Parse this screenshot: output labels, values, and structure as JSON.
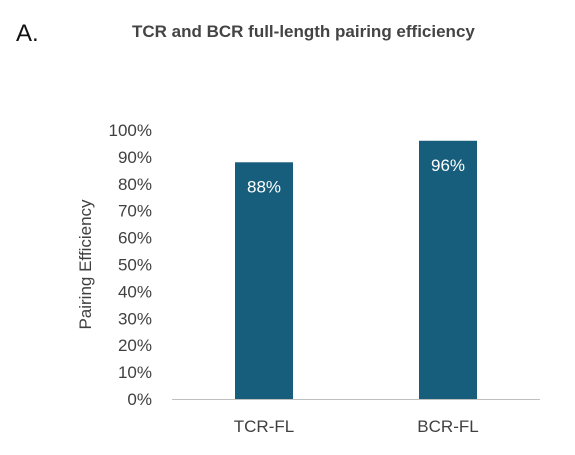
{
  "panel_label": "A.",
  "chart_data": {
    "type": "bar",
    "title": "TCR and BCR full-length pairing efficiency",
    "xlabel": "",
    "ylabel": "Pairing Efficiency",
    "categories": [
      "TCR-FL",
      "BCR-FL"
    ],
    "values": [
      88,
      96
    ],
    "data_labels": [
      "88%",
      "96%"
    ],
    "ylim": [
      0,
      100
    ],
    "yticks": [
      0,
      10,
      20,
      30,
      40,
      50,
      60,
      70,
      80,
      90,
      100
    ],
    "ytick_labels": [
      "0%",
      "10%",
      "20%",
      "30%",
      "40%",
      "50%",
      "60%",
      "70%",
      "80%",
      "90%",
      "100%"
    ],
    "grid": false,
    "legend": "none",
    "bar_color": "#175E7C",
    "axis_color": "#BFBFBF"
  }
}
